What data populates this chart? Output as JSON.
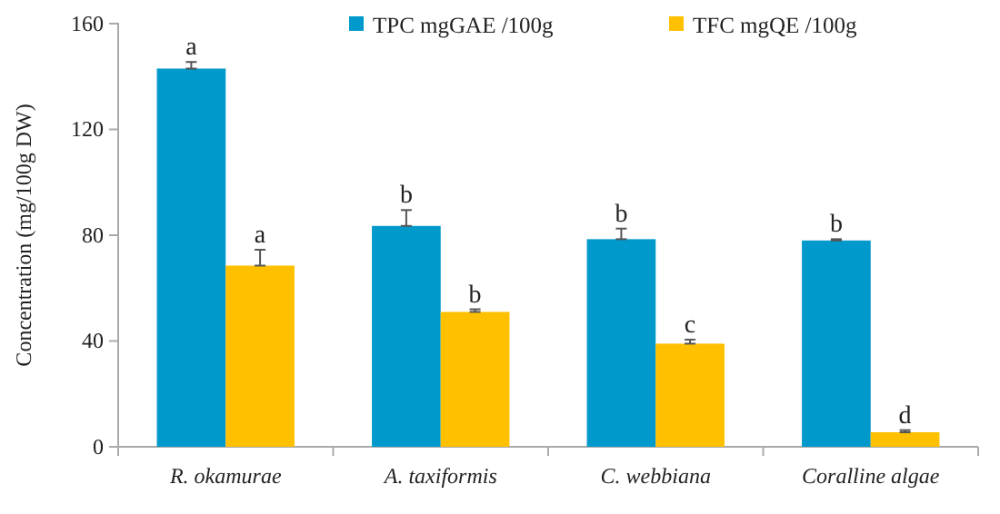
{
  "chart_data": {
    "type": "bar",
    "ylabel": "Concentration (mg/100g DW)",
    "categories": [
      "R. okamurae",
      "A. taxiformis",
      "C. webbiana",
      "Coralline algae"
    ],
    "series": [
      {
        "name": "TPC mgGAE /100g",
        "color": "#0099cc",
        "values": [
          143,
          83.5,
          78.5,
          78
        ],
        "errors": [
          [
            143,
            145.5
          ],
          [
            83.5,
            89.5
          ],
          [
            78.5,
            82.5
          ],
          [
            78,
            78.5
          ]
        ],
        "value_labels": [
          "a",
          "b",
          "b",
          "b"
        ]
      },
      {
        "name": "TFC mgQE /100g",
        "color": "#ffc000",
        "values": [
          68.5,
          51,
          39,
          5.5
        ],
        "errors": [
          [
            68.5,
            74.5
          ],
          [
            51,
            52
          ],
          [
            39,
            40.5
          ],
          [
            5.5,
            6.3
          ]
        ],
        "value_labels": [
          "a",
          "b",
          "c",
          "d"
        ]
      }
    ],
    "ylim": [
      0,
      160
    ],
    "yticks": [
      0,
      40,
      80,
      120,
      160
    ],
    "grid": false,
    "legend": "top right"
  }
}
